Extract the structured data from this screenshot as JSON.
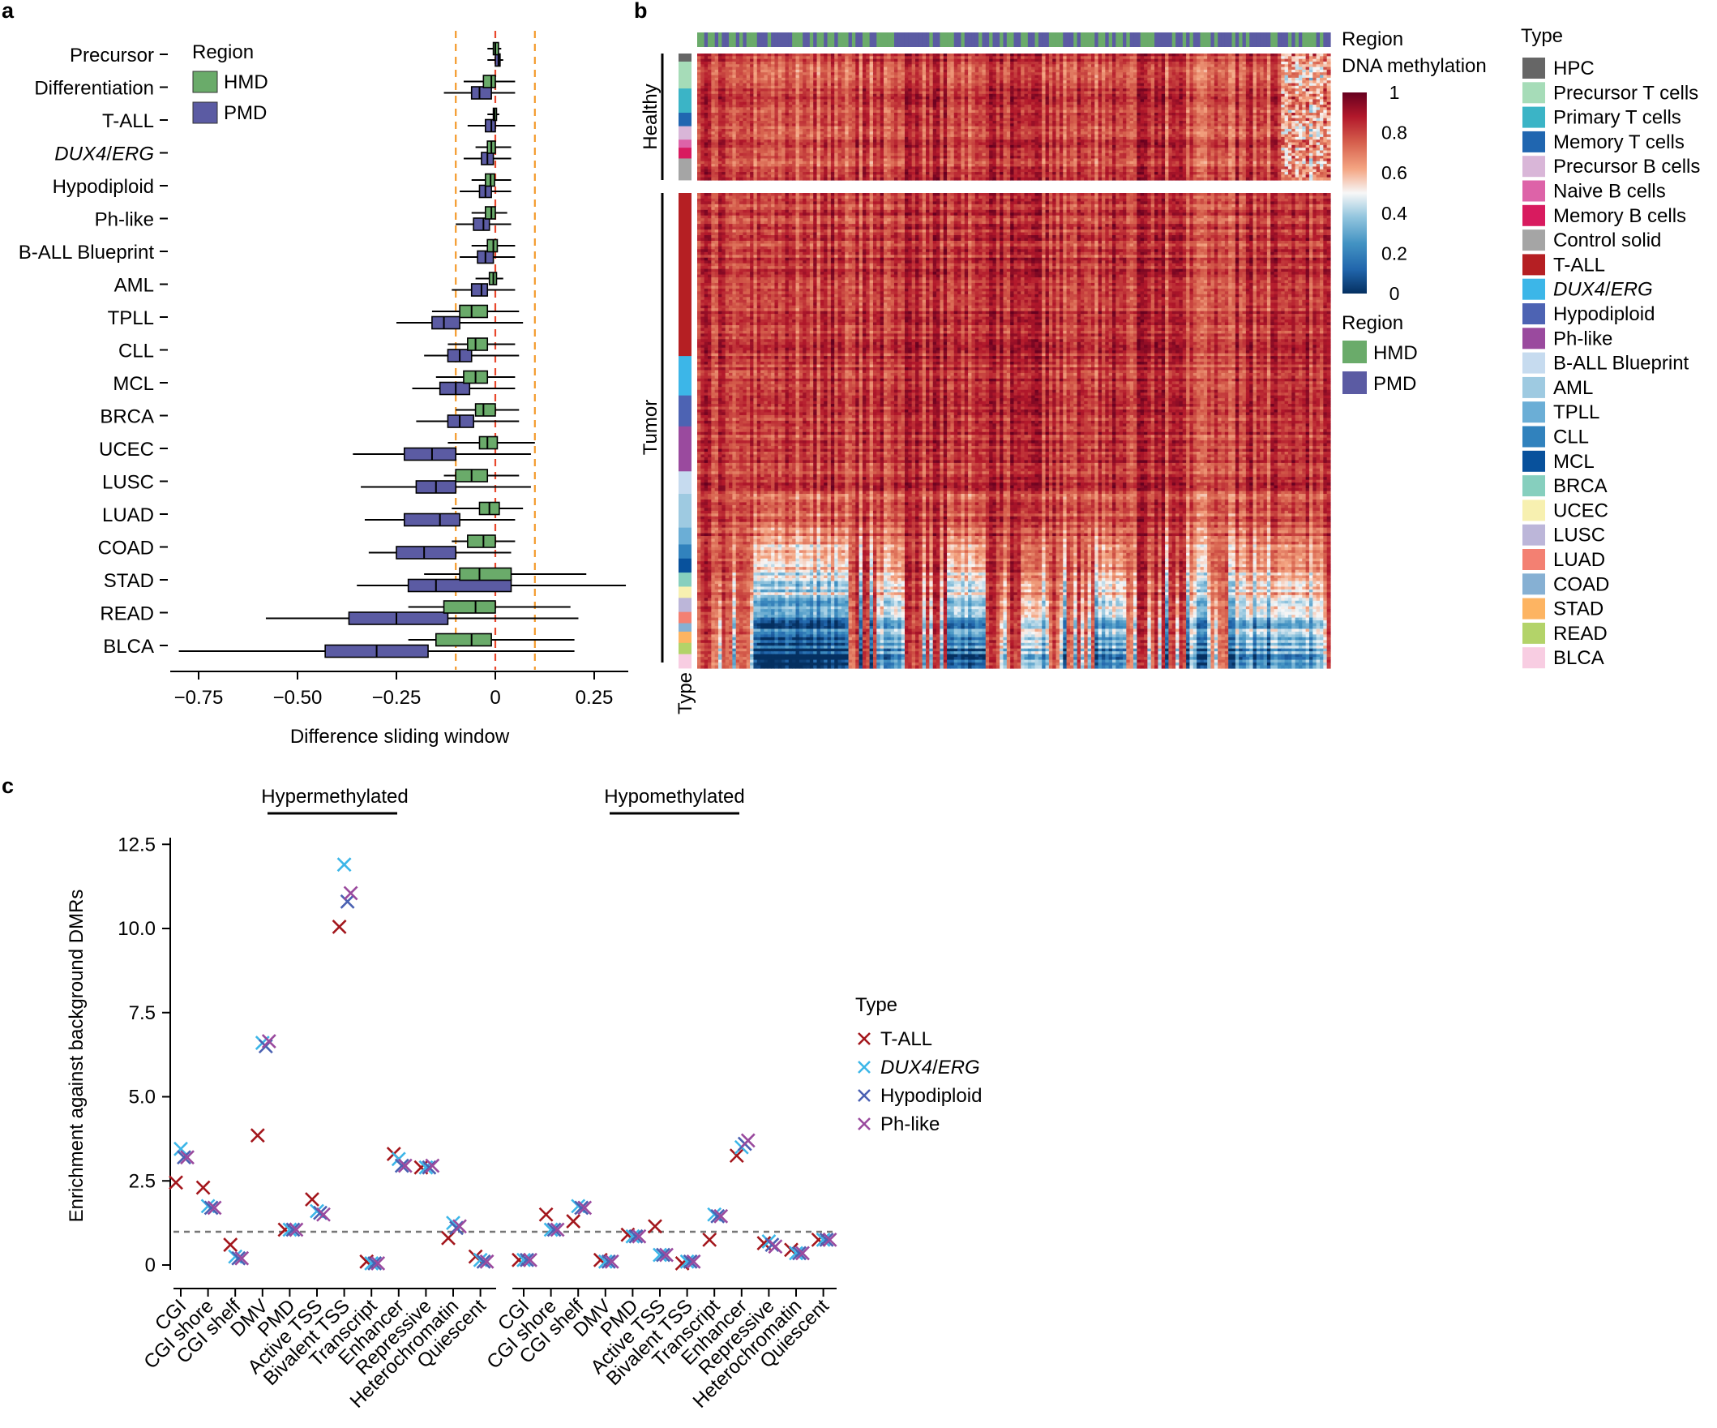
{
  "panels": {
    "a": "a",
    "b": "b",
    "c": "c"
  },
  "chart_data": [
    {
      "type": "box",
      "panel": "a",
      "xlabel": "Difference sliding window",
      "xlim": [
        -0.8,
        0.33
      ],
      "x_ticks": [
        -0.75,
        -0.5,
        -0.25,
        0,
        0.25
      ],
      "x_tick_labels": [
        "−0.75",
        "−0.50",
        "−0.25",
        "0",
        "0.25"
      ],
      "reference_lines": [
        -0.1,
        0,
        0.1
      ],
      "legend": {
        "title": "Region",
        "items": [
          {
            "label": "HMD",
            "color": "#6aab6a"
          },
          {
            "label": "PMD",
            "color": "#5b5ba3"
          }
        ]
      },
      "categories": [
        {
          "label": "Precursor",
          "italic": false,
          "HMD": {
            "lo": -0.02,
            "q1": -0.005,
            "med": 0.0,
            "q3": 0.008,
            "hi": 0.015
          },
          "PMD": {
            "lo": -0.02,
            "q1": 0.0,
            "med": 0.008,
            "q3": 0.012,
            "hi": 0.02
          }
        },
        {
          "label": "Differentiation",
          "italic": false,
          "HMD": {
            "lo": -0.08,
            "q1": -0.03,
            "med": -0.01,
            "q3": 0.0,
            "hi": 0.05
          },
          "PMD": {
            "lo": -0.13,
            "q1": -0.06,
            "med": -0.04,
            "q3": -0.01,
            "hi": 0.05
          }
        },
        {
          "label": "T-ALL",
          "italic": false,
          "HMD": {
            "lo": -0.02,
            "q1": -0.005,
            "med": -0.002,
            "q3": 0.003,
            "hi": 0.01
          },
          "PMD": {
            "lo": -0.07,
            "q1": -0.025,
            "med": -0.01,
            "q3": 0.0,
            "hi": 0.05
          }
        },
        {
          "label": "DUX4/ERG",
          "italic": true,
          "HMD": {
            "lo": -0.05,
            "q1": -0.02,
            "med": -0.01,
            "q3": 0.0,
            "hi": 0.04
          },
          "PMD": {
            "lo": -0.08,
            "q1": -0.035,
            "med": -0.02,
            "q3": -0.005,
            "hi": 0.04
          }
        },
        {
          "label": "Hypodiploid",
          "italic": false,
          "HMD": {
            "lo": -0.06,
            "q1": -0.025,
            "med": -0.012,
            "q3": -0.002,
            "hi": 0.04
          },
          "PMD": {
            "lo": -0.09,
            "q1": -0.04,
            "med": -0.025,
            "q3": -0.01,
            "hi": 0.04
          }
        },
        {
          "label": "Ph-like",
          "italic": false,
          "HMD": {
            "lo": -0.06,
            "q1": -0.025,
            "med": -0.01,
            "q3": 0.0,
            "hi": 0.03
          },
          "PMD": {
            "lo": -0.1,
            "q1": -0.055,
            "med": -0.03,
            "q3": -0.015,
            "hi": 0.04
          }
        },
        {
          "label": "B-ALL Blueprint",
          "italic": false,
          "HMD": {
            "lo": -0.06,
            "q1": -0.02,
            "med": -0.005,
            "q3": 0.005,
            "hi": 0.05
          },
          "PMD": {
            "lo": -0.09,
            "q1": -0.045,
            "med": -0.025,
            "q3": -0.005,
            "hi": 0.05
          }
        },
        {
          "label": "AML",
          "italic": false,
          "HMD": {
            "lo": -0.05,
            "q1": -0.015,
            "med": -0.005,
            "q3": 0.003,
            "hi": 0.02
          },
          "PMD": {
            "lo": -0.11,
            "q1": -0.06,
            "med": -0.035,
            "q3": -0.02,
            "hi": 0.05
          }
        },
        {
          "label": "TPLL",
          "italic": false,
          "HMD": {
            "lo": -0.16,
            "q1": -0.09,
            "med": -0.06,
            "q3": -0.02,
            "hi": 0.06
          },
          "PMD": {
            "lo": -0.25,
            "q1": -0.16,
            "med": -0.13,
            "q3": -0.09,
            "hi": 0.07
          }
        },
        {
          "label": "CLL",
          "italic": false,
          "HMD": {
            "lo": -0.12,
            "q1": -0.07,
            "med": -0.05,
            "q3": -0.02,
            "hi": 0.05
          },
          "PMD": {
            "lo": -0.18,
            "q1": -0.12,
            "med": -0.09,
            "q3": -0.06,
            "hi": 0.06
          }
        },
        {
          "label": "MCL",
          "italic": false,
          "HMD": {
            "lo": -0.15,
            "q1": -0.08,
            "med": -0.05,
            "q3": -0.02,
            "hi": 0.05
          },
          "PMD": {
            "lo": -0.21,
            "q1": -0.14,
            "med": -0.1,
            "q3": -0.065,
            "hi": 0.05
          }
        },
        {
          "label": "BRCA",
          "italic": false,
          "HMD": {
            "lo": -0.1,
            "q1": -0.05,
            "med": -0.03,
            "q3": 0.0,
            "hi": 0.06
          },
          "PMD": {
            "lo": -0.2,
            "q1": -0.12,
            "med": -0.09,
            "q3": -0.055,
            "hi": 0.06
          }
        },
        {
          "label": "UCEC",
          "italic": false,
          "HMD": {
            "lo": -0.12,
            "q1": -0.04,
            "med": -0.02,
            "q3": 0.005,
            "hi": 0.1
          },
          "PMD": {
            "lo": -0.36,
            "q1": -0.23,
            "med": -0.16,
            "q3": -0.1,
            "hi": 0.09
          }
        },
        {
          "label": "LUSC",
          "italic": false,
          "HMD": {
            "lo": -0.13,
            "q1": -0.1,
            "med": -0.06,
            "q3": -0.02,
            "hi": 0.06
          },
          "PMD": {
            "lo": -0.34,
            "q1": -0.2,
            "med": -0.15,
            "q3": -0.1,
            "hi": 0.09
          }
        },
        {
          "label": "LUAD",
          "italic": false,
          "HMD": {
            "lo": -0.11,
            "q1": -0.04,
            "med": -0.015,
            "q3": 0.01,
            "hi": 0.07
          },
          "PMD": {
            "lo": -0.33,
            "q1": -0.23,
            "med": -0.14,
            "q3": -0.09,
            "hi": 0.05
          }
        },
        {
          "label": "COAD",
          "italic": false,
          "HMD": {
            "lo": -0.11,
            "q1": -0.07,
            "med": -0.03,
            "q3": 0.0,
            "hi": 0.05
          },
          "PMD": {
            "lo": -0.32,
            "q1": -0.25,
            "med": -0.18,
            "q3": -0.1,
            "hi": 0.04
          }
        },
        {
          "label": "STAD",
          "italic": false,
          "HMD": {
            "lo": -0.18,
            "q1": -0.09,
            "med": -0.04,
            "q3": 0.04,
            "hi": 0.23
          },
          "PMD": {
            "lo": -0.35,
            "q1": -0.22,
            "med": -0.15,
            "q3": 0.04,
            "hi": 0.33
          }
        },
        {
          "label": "READ",
          "italic": false,
          "HMD": {
            "lo": -0.22,
            "q1": -0.13,
            "med": -0.05,
            "q3": 0.0,
            "hi": 0.19
          },
          "PMD": {
            "lo": -0.58,
            "q1": -0.37,
            "med": -0.25,
            "q3": -0.12,
            "hi": 0.21
          }
        },
        {
          "label": "BLCA",
          "italic": false,
          "HMD": {
            "lo": -0.22,
            "q1": -0.15,
            "med": -0.06,
            "q3": -0.01,
            "hi": 0.2
          },
          "PMD": {
            "lo": -0.8,
            "q1": -0.43,
            "med": -0.3,
            "q3": -0.17,
            "hi": 0.2
          }
        }
      ]
    },
    {
      "type": "heatmap",
      "panel": "b",
      "row_group_labels": [
        "Healthy",
        "Tumor"
      ],
      "row_annotation_label": "Type",
      "column_annotation_label": "Region",
      "colorbar": {
        "title": "DNA methylation",
        "ticks": [
          0,
          0.2,
          0.4,
          0.6,
          0.8,
          1
        ],
        "tick_labels": [
          "0",
          "0.2",
          "0.4",
          "0.6",
          "0.8",
          "1"
        ],
        "colors": [
          "#053061",
          "#2166ac",
          "#4393c3",
          "#92c5de",
          "#f7f7f7",
          "#f4a582",
          "#d6604d",
          "#b2182b",
          "#67001f"
        ]
      },
      "region_legend": {
        "title": "Region",
        "items": [
          {
            "label": "HMD",
            "color": "#6aab6a"
          },
          {
            "label": "PMD",
            "color": "#5b5ba3"
          }
        ]
      },
      "type_legend": {
        "title": "Type",
        "items": [
          {
            "label": "HPC",
            "color": "#666666",
            "italic": false
          },
          {
            "label": "Precursor T cells",
            "color": "#a6dcb8",
            "italic": false
          },
          {
            "label": "Primary T cells",
            "color": "#3bb4c6",
            "italic": false
          },
          {
            "label": "Memory T cells",
            "color": "#2066b0",
            "italic": false
          },
          {
            "label": "Precursor B cells",
            "color": "#d9b6d8",
            "italic": false
          },
          {
            "label": "Naive B cells",
            "color": "#dd63a8",
            "italic": false
          },
          {
            "label": "Memory B cells",
            "color": "#d81b5f",
            "italic": false
          },
          {
            "label": "Control solid",
            "color": "#a5a5a5",
            "italic": false
          },
          {
            "label": "T-ALL",
            "color": "#b51f23",
            "italic": false
          },
          {
            "label": "DUX4/ERG",
            "color": "#3cb6e8",
            "italic": true
          },
          {
            "label": "Hypodiploid",
            "color": "#4d63b3",
            "italic": false
          },
          {
            "label": "Ph-like",
            "color": "#9a4a9e",
            "italic": false
          },
          {
            "label": "B-ALL Blueprint",
            "color": "#c6dbef",
            "italic": false
          },
          {
            "label": "AML",
            "color": "#9ecae1",
            "italic": false
          },
          {
            "label": "TPLL",
            "color": "#6baed6",
            "italic": false
          },
          {
            "label": "CLL",
            "color": "#3182bd",
            "italic": false
          },
          {
            "label": "MCL",
            "color": "#08519c",
            "italic": false
          },
          {
            "label": "BRCA",
            "color": "#86cfbe",
            "italic": false
          },
          {
            "label": "UCEC",
            "color": "#f7f0b0",
            "italic": false
          },
          {
            "label": "LUSC",
            "color": "#bcb6d9",
            "italic": false
          },
          {
            "label": "LUAD",
            "color": "#f38072",
            "italic": false
          },
          {
            "label": "COAD",
            "color": "#86b0d3",
            "italic": false
          },
          {
            "label": "STAD",
            "color": "#fdb462",
            "italic": false
          },
          {
            "label": "READ",
            "color": "#b3d369",
            "italic": false
          },
          {
            "label": "BLCA",
            "color": "#f8cde2",
            "italic": false
          }
        ]
      },
      "healthy_rows": [
        {
          "type": "HPC",
          "n": 3
        },
        {
          "type": "Precursor T cells",
          "n": 10
        },
        {
          "type": "Primary T cells",
          "n": 9
        },
        {
          "type": "Memory T cells",
          "n": 5
        },
        {
          "type": "Precursor B cells",
          "n": 5
        },
        {
          "type": "Naive B cells",
          "n": 3
        },
        {
          "type": "Memory B cells",
          "n": 4
        },
        {
          "type": "Control solid",
          "n": 8
        }
      ],
      "tumor_rows": [
        {
          "type": "T-ALL",
          "n": 58
        },
        {
          "type": "DUX4/ERG",
          "n": 14
        },
        {
          "type": "Hypodiploid",
          "n": 11
        },
        {
          "type": "Ph-like",
          "n": 16
        },
        {
          "type": "B-ALL Blueprint",
          "n": 8
        },
        {
          "type": "AML",
          "n": 12
        },
        {
          "type": "TPLL",
          "n": 6
        },
        {
          "type": "CLL",
          "n": 5
        },
        {
          "type": "MCL",
          "n": 5
        },
        {
          "type": "BRCA",
          "n": 5
        },
        {
          "type": "UCEC",
          "n": 4
        },
        {
          "type": "LUSC",
          "n": 5
        },
        {
          "type": "LUAD",
          "n": 4
        },
        {
          "type": "COAD",
          "n": 3
        },
        {
          "type": "STAD",
          "n": 4
        },
        {
          "type": "READ",
          "n": 4
        },
        {
          "type": "BLCA",
          "n": 5
        }
      ],
      "n_columns": 180
    },
    {
      "type": "scatter",
      "panel": "c",
      "ylabel": "Enrichment against background DMRs",
      "ylim": [
        -0.5,
        13
      ],
      "y_ticks": [
        0,
        2.5,
        5.0,
        7.5,
        10.0,
        12.5
      ],
      "y_tick_labels": [
        "0",
        "2.5",
        "5.0",
        "7.5",
        "10.0",
        "12.5"
      ],
      "baseline": 1,
      "groups": [
        "Hypermethylated",
        "Hypomethylated"
      ],
      "categories": [
        "CGI",
        "CGI shore",
        "CGI shelf",
        "DMV",
        "PMD",
        "Active TSS",
        "Bivalent TSS",
        "Transcript",
        "Enhancer",
        "Repressive",
        "Heterochromatin",
        "Quiescent"
      ],
      "legend_title": "Type",
      "series": [
        {
          "name": "T-ALL",
          "italic": false,
          "color": "#a3161c",
          "hyper": [
            2.45,
            2.3,
            0.6,
            3.85,
            1.05,
            1.95,
            10.05,
            0.1,
            3.3,
            2.9,
            0.8,
            0.25
          ],
          "hypo": [
            0.15,
            1.5,
            1.3,
            0.15,
            0.9,
            1.15,
            0.05,
            0.75,
            3.25,
            0.65,
            0.45,
            0.75
          ]
        },
        {
          "name": "DUX4/ERG",
          "italic": true,
          "color": "#3cb6e8",
          "hyper": [
            3.45,
            1.75,
            0.25,
            6.6,
            1.05,
            1.6,
            11.9,
            0.05,
            3.15,
            2.9,
            1.25,
            0.15
          ],
          "hypo": [
            0.15,
            1.05,
            1.75,
            0.1,
            0.85,
            0.3,
            0.1,
            1.5,
            3.5,
            0.7,
            0.35,
            0.75
          ]
        },
        {
          "name": "Hypodiploid",
          "italic": false,
          "color": "#4a61b2",
          "hyper": [
            3.2,
            1.7,
            0.2,
            6.5,
            1.05,
            1.55,
            10.8,
            0.05,
            2.95,
            2.9,
            1.1,
            0.1
          ],
          "hypo": [
            0.15,
            1.05,
            1.7,
            0.1,
            0.85,
            0.3,
            0.1,
            1.45,
            3.6,
            0.6,
            0.35,
            0.75
          ]
        },
        {
          "name": "Ph-like",
          "italic": false,
          "color": "#9a4a9e",
          "hyper": [
            3.2,
            1.7,
            0.2,
            6.65,
            1.05,
            1.5,
            11.05,
            0.05,
            2.95,
            2.95,
            1.15,
            0.1
          ],
          "hypo": [
            0.15,
            1.05,
            1.7,
            0.1,
            0.85,
            0.3,
            0.1,
            1.45,
            3.7,
            0.55,
            0.35,
            0.75
          ]
        }
      ]
    }
  ]
}
